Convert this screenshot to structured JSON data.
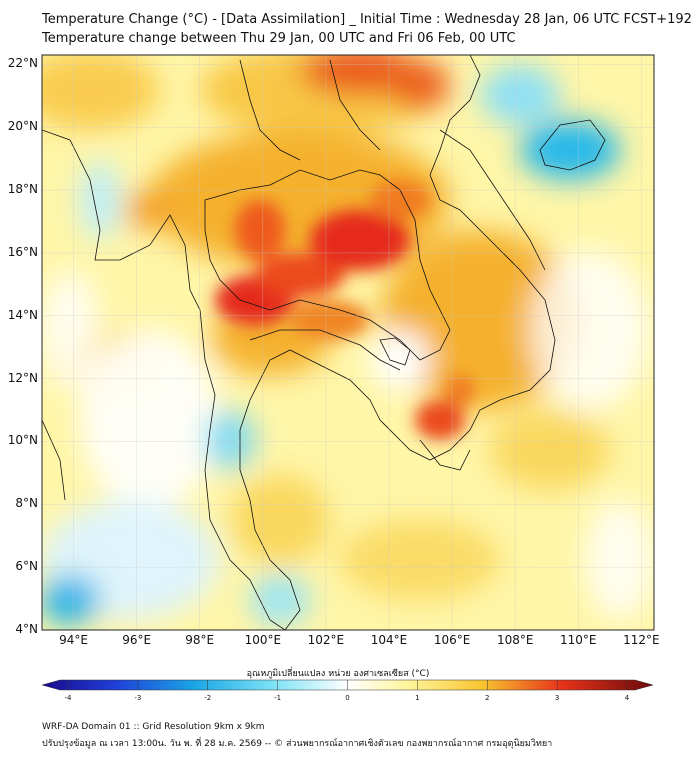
{
  "title_line1": "Temperature Change (°C) - [Data Assimilation] _ Initial Time : Wednesday 28 Jan, 06 UTC FCST+192",
  "title_line2": "Temperature change between Thu 29 Jan, 00 UTC and Fri 06 Feb, 00 UTC",
  "lat_labels": [
    "22°N",
    "20°N",
    "18°N",
    "16°N",
    "14°N",
    "12°N",
    "10°N",
    "8°N",
    "6°N",
    "4°N"
  ],
  "lat_values": [
    22,
    20,
    18,
    16,
    14,
    12,
    10,
    8,
    6,
    4
  ],
  "lon_labels": [
    "94°E",
    "96°E",
    "98°E",
    "100°E",
    "102°E",
    "104°E",
    "106°E",
    "108°E",
    "110°E",
    "112°E"
  ],
  "lon_values": [
    94,
    96,
    98,
    100,
    102,
    104,
    106,
    108,
    110,
    112
  ],
  "extent": {
    "lon_min": 93,
    "lon_max": 112.4,
    "lat_min": 4,
    "lat_max": 22.3
  },
  "colorbar": {
    "title": "อุณหภูมิเปลี่ยนแปลง หน่วย องศาเซลเซียส (°C)",
    "ticks": [
      "-4",
      "-3",
      "-2",
      "-1",
      "0",
      "1",
      "2",
      "3",
      "4"
    ],
    "tick_values": [
      -4,
      -3,
      -2,
      -1,
      0,
      1,
      2,
      3,
      4
    ],
    "min": -4,
    "max": 4
  },
  "footer_line1": "WRF-DA Domain 01 :: Grid Resolution 9km x 9km",
  "footer_line2": "ปรับปรุงข้อมูล ณ เวลา 13:00น. วัน พ. ที่ 28 ม.ค. 2569 -- © ส่วนพยากรณ์อากาศเชิงตัวเลข กองพยากรณ์อากาศ กรมอุตุนิยมวิทยา",
  "colors": {
    "cold": "#1ab4e8",
    "neutral": "#ffffff",
    "warm": "#f5a623",
    "hot": "#e8251f"
  }
}
